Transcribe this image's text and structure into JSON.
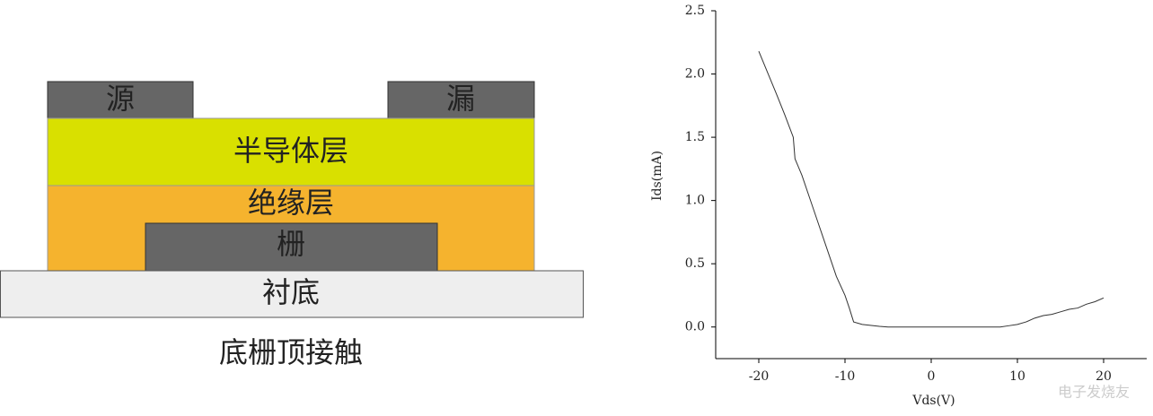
{
  "diagram": {
    "layers": {
      "source": "源",
      "drain": "漏",
      "semiconductor": "半导体层",
      "insulator": "绝缘层",
      "gate": "栅",
      "substrate": "衬底"
    },
    "caption": "底栅顶接触"
  },
  "chart_data": {
    "type": "line",
    "x_label": "Vds(V)",
    "y_label": "Ids(mA)",
    "x": [
      -20,
      -18,
      -17,
      -16,
      -15.8,
      -15,
      -14,
      -13,
      -12,
      -11,
      -10,
      -9.5,
      -9,
      -8,
      -6,
      -5,
      0,
      5,
      8,
      9,
      10,
      11,
      12,
      13,
      14,
      15,
      16,
      17,
      18,
      19,
      20
    ],
    "series": [
      {
        "color": "#333333",
        "values": [
          2.18,
          1.85,
          1.68,
          1.5,
          1.33,
          1.2,
          1.0,
          0.8,
          0.6,
          0.4,
          0.25,
          0.15,
          0.04,
          0.02,
          0.005,
          0,
          0,
          0,
          0,
          0.01,
          0.02,
          0.04,
          0.07,
          0.09,
          0.1,
          0.12,
          0.14,
          0.15,
          0.18,
          0.2,
          0.23
        ]
      }
    ],
    "xlim": [
      -25,
      25
    ],
    "xticks": [
      -20,
      -10,
      0,
      10,
      20
    ],
    "ylim": [
      -0.25,
      2.5
    ],
    "yticks": [
      {
        "value": 0,
        "label": "0.0"
      },
      0.5,
      {
        "value": 1,
        "label": "1.0"
      },
      1.5,
      {
        "value": 2,
        "label": "2.0"
      },
      2.5
    ],
    "watermark": "电子发烧友"
  }
}
